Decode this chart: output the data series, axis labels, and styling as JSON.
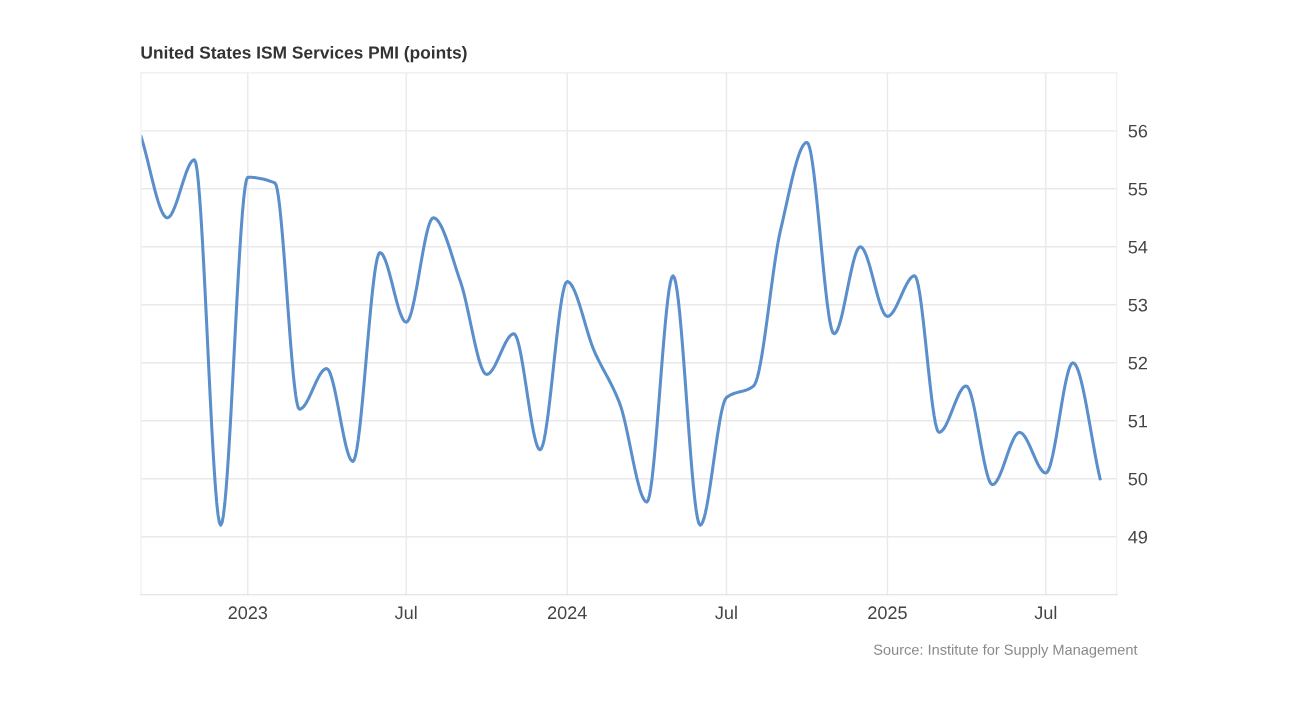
{
  "chart_data": {
    "type": "line",
    "title": "United States ISM Services PMI (points)",
    "x": [
      "2022-09",
      "2022-10",
      "2022-11",
      "2022-12",
      "2023-01",
      "2023-02",
      "2023-03",
      "2023-04",
      "2023-05",
      "2023-06",
      "2023-07",
      "2023-08",
      "2023-09",
      "2023-10",
      "2023-11",
      "2023-12",
      "2024-01",
      "2024-02",
      "2024-03",
      "2024-04",
      "2024-05",
      "2024-06",
      "2024-07",
      "2024-08",
      "2024-09",
      "2024-10",
      "2024-11",
      "2024-12",
      "2025-01",
      "2025-02",
      "2025-03",
      "2025-04",
      "2025-05",
      "2025-06",
      "2025-07",
      "2025-08",
      "2025-09"
    ],
    "series": [
      {
        "color": "#5b8fcc",
        "values": [
          55.9,
          54.5,
          55.5,
          49.2,
          55.2,
          55.1,
          51.2,
          51.9,
          50.3,
          53.9,
          52.7,
          54.5,
          53.4,
          51.8,
          52.5,
          50.5,
          53.4,
          52.2,
          51.3,
          49.6,
          53.5,
          49.2,
          51.4,
          51.6,
          54.3,
          55.8,
          52.5,
          54.0,
          52.8,
          53.5,
          50.8,
          51.6,
          49.9,
          50.8,
          50.1,
          52.0,
          50.0
        ]
      }
    ],
    "xlim": [
      "2022-09-01",
      "2025-09-20"
    ],
    "xticks": [
      {
        "value": "2023-01-01",
        "label": "2023"
      },
      {
        "value": "2023-07-01",
        "label": "Jul"
      },
      {
        "value": "2024-01-01",
        "label": "2024"
      },
      {
        "value": "2024-07-01",
        "label": "Jul"
      },
      {
        "value": "2025-01-01",
        "label": "2025"
      },
      {
        "value": "2025-07-01",
        "label": "Jul"
      }
    ],
    "ylim": [
      48,
      57
    ],
    "yticks": [
      49,
      50,
      51,
      52,
      53,
      54,
      55,
      56
    ],
    "grid": true,
    "marker": "none",
    "line_style": "solid",
    "annotations": [
      "Source: Institute for Supply Management"
    ]
  }
}
